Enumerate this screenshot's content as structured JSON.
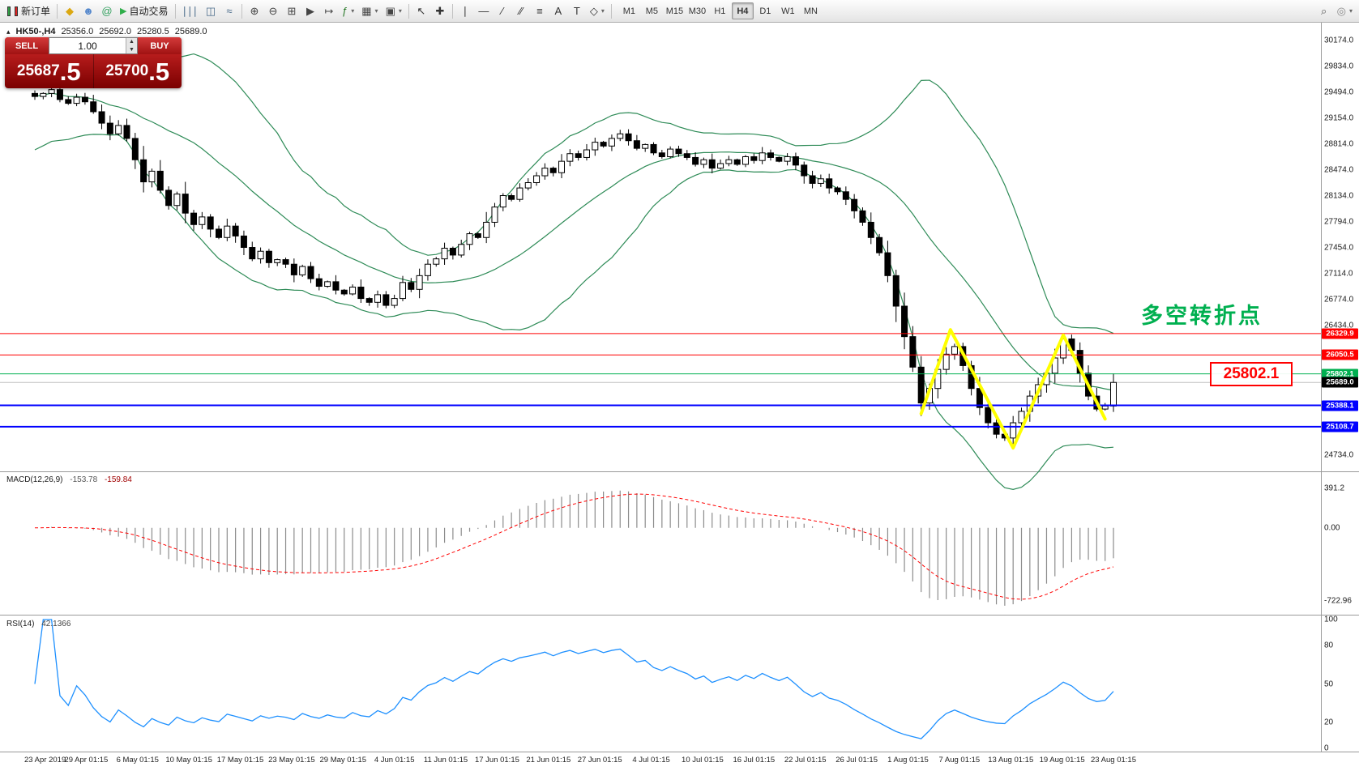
{
  "toolbar": {
    "items": [
      {
        "name": "new-order-button",
        "kind": "labeled",
        "icon": "candles",
        "label": "新订单"
      },
      {
        "kind": "sep"
      },
      {
        "name": "metaeditor-button",
        "kind": "icon",
        "glyph": "◆",
        "color": "#dba812"
      },
      {
        "name": "market-button",
        "kind": "icon",
        "glyph": "☻",
        "color": "#5588cc"
      },
      {
        "name": "signals-button",
        "kind": "icon",
        "glyph": "@",
        "color": "#33a05f"
      },
      {
        "name": "autotrading-button",
        "kind": "labeled",
        "icon": "play",
        "label": "自动交易"
      },
      {
        "kind": "sep"
      },
      {
        "name": "bar-chart-button",
        "kind": "icon",
        "glyph": "∣∣∣",
        "color": "#4a6b8a"
      },
      {
        "name": "candlestick-chart-button",
        "kind": "icon",
        "glyph": "◫",
        "color": "#4a6b8a"
      },
      {
        "name": "line-chart-button",
        "kind": "icon",
        "glyph": "≈",
        "color": "#4a6b8a"
      },
      {
        "kind": "sep"
      },
      {
        "name": "zoom-in-button",
        "kind": "icon",
        "glyph": "⊕",
        "color": "#444"
      },
      {
        "name": "zoom-out-button",
        "kind": "icon",
        "glyph": "⊖",
        "color": "#444"
      },
      {
        "name": "tile-windows-button",
        "kind": "icon",
        "glyph": "⊞",
        "color": "#444"
      },
      {
        "name": "auto-scroll-button",
        "kind": "icon",
        "glyph": "▶",
        "color": "#444"
      },
      {
        "name": "chart-shift-button",
        "kind": "icon",
        "glyph": "↦",
        "color": "#444"
      },
      {
        "name": "indicators-button",
        "kind": "icon",
        "glyph": "ƒ",
        "color": "#2a7a2a",
        "dropdown": true
      },
      {
        "name": "periods-button",
        "kind": "icon",
        "glyph": "▦",
        "color": "#444",
        "dropdown": true
      },
      {
        "name": "templates-button",
        "kind": "icon",
        "glyph": "▣",
        "color": "#444",
        "dropdown": true
      },
      {
        "kind": "sep"
      },
      {
        "name": "cursor-button",
        "kind": "icon",
        "glyph": "↖",
        "color": "#333"
      },
      {
        "name": "crosshair-button",
        "kind": "icon",
        "glyph": "✚",
        "color": "#333"
      },
      {
        "kind": "sep"
      },
      {
        "name": "vertical-line-button",
        "kind": "icon",
        "glyph": "∣",
        "color": "#333"
      },
      {
        "name": "horizontal-line-button",
        "kind": "icon",
        "glyph": "—",
        "color": "#333"
      },
      {
        "name": "trendline-button",
        "kind": "icon",
        "glyph": "∕",
        "color": "#333"
      },
      {
        "name": "channel-button",
        "kind": "icon",
        "glyph": "∕∕",
        "color": "#333"
      },
      {
        "name": "fibonacci-button",
        "kind": "icon",
        "glyph": "≡",
        "color": "#333"
      },
      {
        "name": "text-button",
        "kind": "icon",
        "glyph": "A",
        "color": "#333"
      },
      {
        "name": "text-label-button",
        "kind": "icon",
        "glyph": "T",
        "color": "#333"
      },
      {
        "name": "arrows-button",
        "kind": "icon",
        "glyph": "◇",
        "color": "#333",
        "dropdown": true
      },
      {
        "kind": "sep"
      },
      {
        "kind": "timeframes"
      },
      {
        "kind": "spacer"
      },
      {
        "name": "search-button",
        "kind": "icon",
        "glyph": "⌕",
        "color": "#555"
      },
      {
        "name": "help-button",
        "kind": "icon",
        "glyph": "◎",
        "color": "#888",
        "dropdown": true
      }
    ],
    "timeframes": {
      "items": [
        "M1",
        "M5",
        "M15",
        "M30",
        "H1",
        "H4",
        "D1",
        "W1",
        "MN"
      ],
      "active": "H4"
    }
  },
  "chart_header": {
    "symbol_period": "HK50-,H4",
    "open": "25356.0",
    "high": "25692.0",
    "low": "25280.5",
    "close": "25689.0"
  },
  "trade_panel": {
    "sell_label": "SELL",
    "buy_label": "BUY",
    "volume": "1.00",
    "sell_price": "25687.5",
    "buy_price": "25700.5"
  },
  "annotations": {
    "turning_point_text": "多空转折点",
    "price_callout": "25802.1"
  },
  "hlines": [
    {
      "value": 26329.9,
      "label": "26329.9",
      "color": "#FF0000",
      "width": 1
    },
    {
      "value": 26050.5,
      "label": "26050.5",
      "color": "#FF0000",
      "width": 1
    },
    {
      "value": 25802.1,
      "label": "25802.1",
      "color": "#00B050",
      "width": 1
    },
    {
      "value": 25388.1,
      "label": "25388.1",
      "color": "#0000FF",
      "width": 2
    },
    {
      "value": 25108.7,
      "label": "25108.7",
      "color": "#0000FF",
      "width": 2
    }
  ],
  "current_price": {
    "value": 25689.0,
    "label": "25689.0"
  },
  "price_axis": {
    "ticks": [
      "30174.0",
      "29834.0",
      "29494.0",
      "29154.0",
      "28814.0",
      "28474.0",
      "28134.0",
      "27794.0",
      "27454.0",
      "27114.0",
      "26774.0",
      "26434.0",
      "26094.0",
      "25754.0",
      "25414.0",
      "25074.0",
      "24734.0"
    ]
  },
  "date_axis": {
    "labels": [
      "23 Apr 2019",
      "29 Apr 01:15",
      "6 May 01:15",
      "10 May 01:15",
      "17 May 01:15",
      "23 May 01:15",
      "29 May 01:15",
      "4 Jun 01:15",
      "11 Jun 01:15",
      "17 Jun 01:15",
      "21 Jun 01:15",
      "27 Jun 01:15",
      "4 Jul 01:15",
      "10 Jul 01:15",
      "16 Jul 01:15",
      "22 Jul 01:15",
      "26 Jul 01:15",
      "1 Aug 01:15",
      "7 Aug 01:15",
      "13 Aug 01:15",
      "19 Aug 01:15",
      "23 Aug 01:15"
    ]
  },
  "macd": {
    "title": "MACD(12,26,9)",
    "value1": "-153.78",
    "value2": "-159.84",
    "ticks": [
      {
        "v": 391.2,
        "label": "391.2"
      },
      {
        "v": 0,
        "label": "0.00"
      },
      {
        "v": -722.96,
        "label": "-722.96"
      }
    ]
  },
  "rsi": {
    "title": "RSI(14)",
    "value": "42.1366",
    "ticks": [
      {
        "v": 100,
        "label": "100"
      },
      {
        "v": 80,
        "label": "80"
      },
      {
        "v": 50,
        "label": "50"
      },
      {
        "v": 20,
        "label": "20"
      },
      {
        "v": 0,
        "label": "0"
      }
    ]
  },
  "chart_data": {
    "type": "candlestick+indicators",
    "symbol": "HK50-",
    "timeframe": "H4",
    "closes": [
      29440,
      29480,
      29530,
      29400,
      29350,
      29430,
      29370,
      29240,
      29090,
      28950,
      29060,
      28890,
      28610,
      28320,
      28460,
      28210,
      28010,
      28160,
      27910,
      27760,
      27860,
      27700,
      27590,
      27740,
      27610,
      27460,
      27310,
      27410,
      27260,
      27300,
      27240,
      27100,
      27210,
      27050,
      26950,
      27010,
      26900,
      26850,
      26940,
      26790,
      26740,
      26840,
      26700,
      26790,
      27000,
      26910,
      27090,
      27240,
      27310,
      27450,
      27360,
      27500,
      27640,
      27590,
      27790,
      27990,
      28140,
      28090,
      28240,
      28310,
      28400,
      28500,
      28440,
      28590,
      28690,
      28640,
      28740,
      28840,
      28790,
      28890,
      28950,
      28860,
      28760,
      28810,
      28700,
      28650,
      28750,
      28690,
      28640,
      28550,
      28610,
      28500,
      28560,
      28610,
      28550,
      28650,
      28600,
      28700,
      28640,
      28590,
      28650,
      28540,
      28400,
      28300,
      28360,
      28240,
      28190,
      28090,
      27940,
      27790,
      27590,
      27390,
      27090,
      26690,
      26290,
      25890,
      25420,
      25610,
      25860,
      26060,
      26160,
      25910,
      25610,
      25360,
      25160,
      25010,
      24960,
      25160,
      25310,
      25510,
      25660,
      25810,
      26010,
      26260,
      26110,
      25810,
      25510,
      25340,
      25380,
      25689
    ],
    "bollinger": {
      "period": 20,
      "deviation": 2
    },
    "macd_params": [
      12,
      26,
      9
    ],
    "rsi_period": 14,
    "zigzag": [
      {
        "i": 106,
        "p": 25280
      },
      {
        "i": 109.5,
        "p": 26380
      },
      {
        "i": 117,
        "p": 24830
      },
      {
        "i": 123,
        "p": 26310
      },
      {
        "i": 128,
        "p": 25210
      }
    ],
    "price_range": {
      "min": 24523,
      "max": 30408
    },
    "macd_range": {
      "min": -850,
      "max": 550
    },
    "rsi_range": {
      "min": 0,
      "max": 100
    }
  },
  "colors": {
    "up_candle": "#ffffff",
    "down_candle": "#000000",
    "bollinger": "#2E8B57",
    "zigzag": "#FFFF00",
    "rsi_line": "#1E90FF",
    "macd_histogram": "#8c8c8c",
    "macd_signal": "#FF0000",
    "annotation_green": "#00B050",
    "callout_red": "#FF0000",
    "current_price_line": "#c0c0c0"
  }
}
